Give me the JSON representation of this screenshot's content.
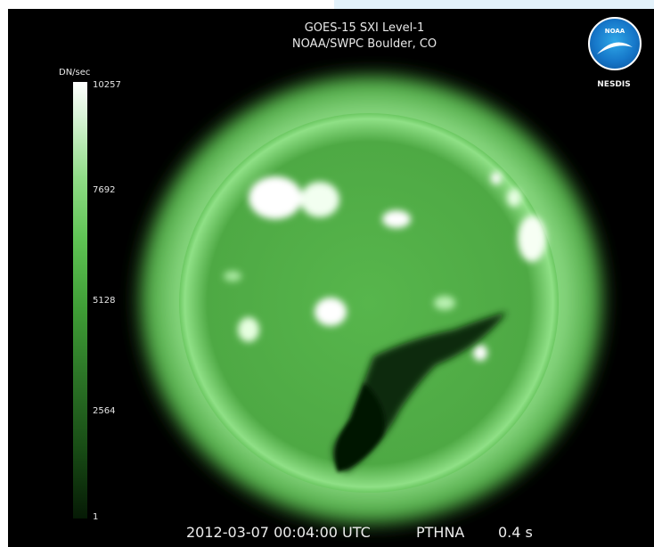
{
  "header": {
    "title_line1": "GOES-15 SXI   Level-1",
    "title_line2": "NOAA/SWPC Boulder, CO"
  },
  "colorbar": {
    "unit": "DN/sec",
    "ticks": [
      "10257",
      "7692",
      "5128",
      "2564",
      "1"
    ]
  },
  "footer": {
    "timestamp": "2012-03-07 00:04:00 UTC",
    "filter": "PTHNA",
    "exposure": "0.4 s"
  },
  "logo": {
    "emblem": "NOAA",
    "label": "NESDIS"
  },
  "colors": {
    "background": "#000000",
    "corona": "#5fcf55",
    "bright_region": "#ffffff"
  }
}
